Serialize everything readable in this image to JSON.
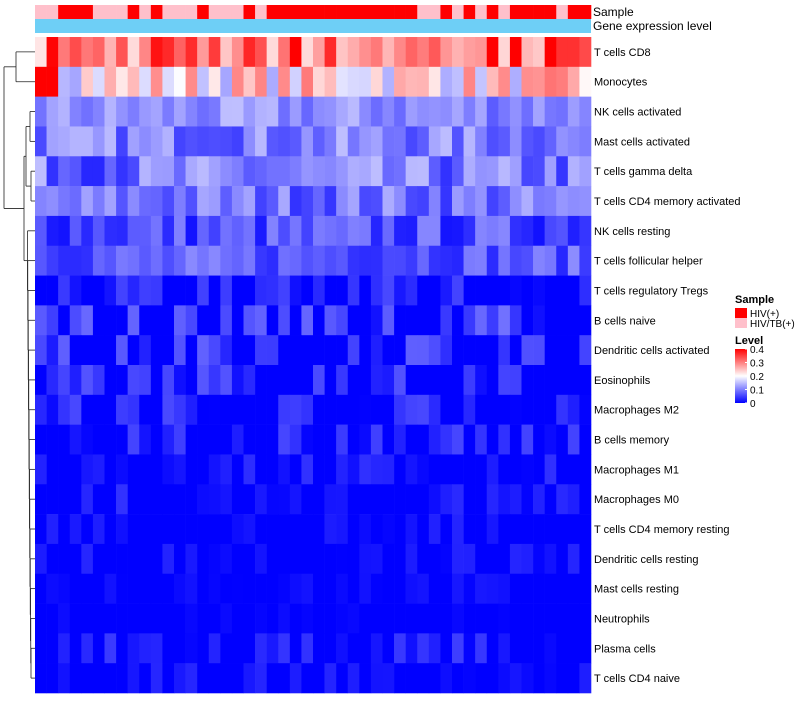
{
  "chart_data": {
    "type": "heatmap",
    "title": "",
    "annotation_tracks": [
      {
        "label": "Sample",
        "key": "sample_type"
      },
      {
        "label": "Gene expression level",
        "key": "expression_level"
      }
    ],
    "n_samples": 48,
    "sample_type": [
      "HIV/TB(+)",
      "HIV/TB(+)",
      "HIV(+)",
      "HIV(+)",
      "HIV(+)",
      "HIV/TB(+)",
      "HIV/TB(+)",
      "HIV/TB(+)",
      "HIV(+)",
      "HIV/TB(+)",
      "HIV(+)",
      "HIV/TB(+)",
      "HIV/TB(+)",
      "HIV/TB(+)",
      "HIV(+)",
      "HIV/TB(+)",
      "HIV/TB(+)",
      "HIV/TB(+)",
      "HIV(+)",
      "HIV/TB(+)",
      "HIV(+)",
      "HIV(+)",
      "HIV(+)",
      "HIV(+)",
      "HIV(+)",
      "HIV(+)",
      "HIV(+)",
      "HIV(+)",
      "HIV(+)",
      "HIV(+)",
      "HIV(+)",
      "HIV(+)",
      "HIV(+)",
      "HIV/TB(+)",
      "HIV/TB(+)",
      "HIV(+)",
      "HIV/TB(+)",
      "HIV(+)",
      "HIV/TB(+)",
      "HIV(+)",
      "HIV/TB(+)",
      "HIV(+)",
      "HIV(+)",
      "HIV(+)",
      "HIV(+)",
      "HIV/TB(+)",
      "HIV(+)",
      "HIV(+)"
    ],
    "expression_level": "uniform",
    "rows": [
      {
        "name": "T cells CD8",
        "level": 0.3,
        "spread": 0.08
      },
      {
        "name": "Monocytes",
        "level": 0.22,
        "spread": 0.09
      },
      {
        "name": "NK cells activated",
        "level": 0.11,
        "spread": 0.04
      },
      {
        "name": "Mast cells activated",
        "level": 0.1,
        "spread": 0.05
      },
      {
        "name": "T cells gamma delta",
        "level": 0.09,
        "spread": 0.06
      },
      {
        "name": "T cells CD4 memory activated",
        "level": 0.09,
        "spread": 0.05
      },
      {
        "name": "NK cells resting",
        "level": 0.06,
        "spread": 0.05
      },
      {
        "name": "T cells follicular helper",
        "level": 0.07,
        "spread": 0.04
      },
      {
        "name": "T cells regulatory  Tregs",
        "level": 0.03,
        "spread": 0.03
      },
      {
        "name": "B cells naive",
        "level": 0.05,
        "spread": 0.04
      },
      {
        "name": "Dendritic cells activated",
        "level": 0.05,
        "spread": 0.03
      },
      {
        "name": "Eosinophils",
        "level": 0.04,
        "spread": 0.03
      },
      {
        "name": "Macrophages M2",
        "level": 0.03,
        "spread": 0.03
      },
      {
        "name": "B cells memory",
        "level": 0.03,
        "spread": 0.03
      },
      {
        "name": "Macrophages M1",
        "level": 0.02,
        "spread": 0.02
      },
      {
        "name": "Macrophages M0",
        "level": 0.02,
        "spread": 0.02
      },
      {
        "name": "T cells CD4 memory resting",
        "level": 0.01,
        "spread": 0.02
      },
      {
        "name": "Dendritic cells resting",
        "level": 0.01,
        "spread": 0.02
      },
      {
        "name": "Mast cells resting",
        "level": 0.01,
        "spread": 0.01
      },
      {
        "name": "Neutrophils",
        "level": 0.0,
        "spread": 0.01
      },
      {
        "name": "Plasma cells",
        "level": 0.02,
        "spread": 0.03
      },
      {
        "name": "T cells CD4 naive",
        "level": 0.01,
        "spread": 0.02
      }
    ],
    "legend_sample": {
      "title": "Sample",
      "entries": [
        {
          "label": "HIV(+)",
          "color": "#ff0000"
        },
        {
          "label": "HIV/TB(+)",
          "color": "#ffc0cb"
        }
      ]
    },
    "legend_level": {
      "title": "Level",
      "ticks": [
        0.4,
        0.3,
        0.2,
        0.1,
        0
      ],
      "tick_labels": [
        "0.4",
        "0.3",
        "0.2",
        "0.1",
        "0"
      ],
      "range": [
        0,
        0.4
      ]
    },
    "colorscale": {
      "low": "#0000ff",
      "mid": "#ffffff",
      "high": "#ff0000",
      "mid_value": 0.2
    },
    "expression_color": "#6ecff6"
  }
}
